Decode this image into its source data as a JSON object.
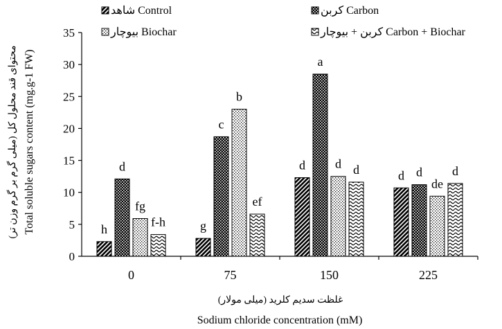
{
  "chart_data": {
    "type": "bar",
    "categories": [
      "0",
      "75",
      "150",
      "225"
    ],
    "series": [
      {
        "name": "شاهد Control",
        "pattern": "diag",
        "values": [
          2.3,
          2.8,
          12.3,
          10.7
        ],
        "labels": [
          "h",
          "g",
          "d",
          "d"
        ]
      },
      {
        "name": "کربن Carbon",
        "pattern": "checker",
        "values": [
          12.1,
          18.7,
          28.5,
          11.2
        ],
        "labels": [
          "d",
          "c",
          "a",
          "d"
        ]
      },
      {
        "name": "بیوچار Biochar",
        "pattern": "dots",
        "values": [
          5.9,
          23.0,
          12.5,
          9.4
        ],
        "labels": [
          "fg",
          "b",
          "d",
          "de"
        ]
      },
      {
        "name": "کربن + بیوچار Carbon + Biochar",
        "pattern": "waves",
        "values": [
          3.4,
          6.6,
          11.6,
          11.4
        ],
        "labels": [
          "f-h",
          "ef",
          "d",
          "d"
        ]
      }
    ],
    "ylim": [
      0,
      35
    ],
    "yticks": [
      "0",
      "5",
      "10",
      "15",
      "20",
      "25",
      "30",
      "35"
    ],
    "xlabel_fa": "غلظت سدیم کلرید (میلی مولار)",
    "xlabel_en": "Sodium chloride concentration (mM)",
    "ylabel_fa": "محتوای قند محلول کل (میلی گرم بر گرم وزن تر)",
    "ylabel_en": "Total soluble sugars content (mg.g-1 FW)",
    "grid": false,
    "legend_position": "top",
    "colors": {
      "bar_fill": "#000000",
      "background": "#ffffff"
    }
  }
}
